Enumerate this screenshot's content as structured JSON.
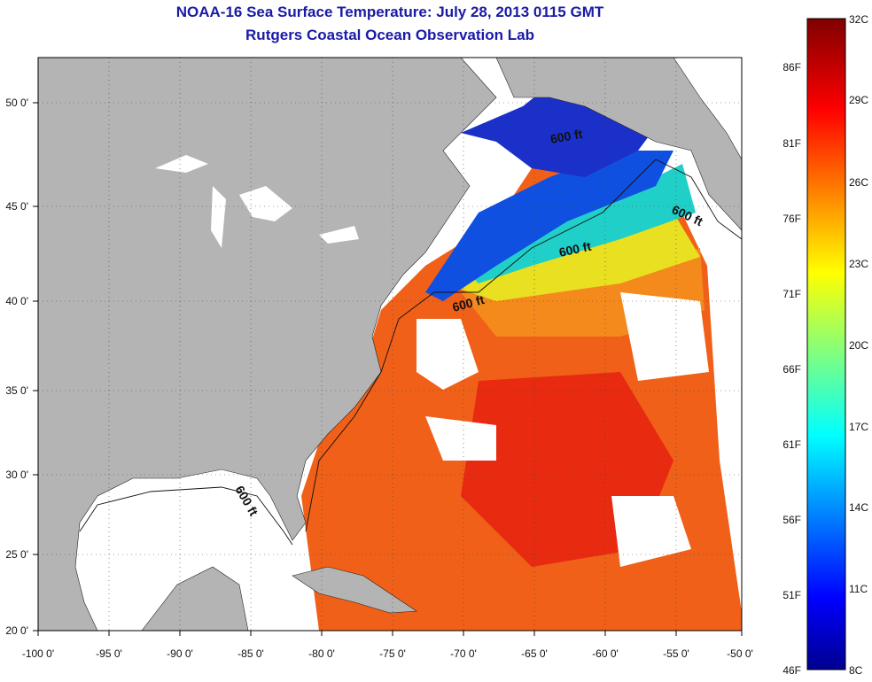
{
  "title": "NOAA-16 Sea Surface Temperature:  July 28, 2013 0115 GMT",
  "subtitle": "Rutgers Coastal Ocean Observation Lab",
  "lat_ticks": [
    "50 0'",
    "45 0'",
    "40 0'",
    "35 0'",
    "30 0'",
    "25 0'",
    "20 0'"
  ],
  "lon_ticks": [
    "-100 0'",
    "-95 0'",
    "-90 0'",
    "-85 0'",
    "-80 0'",
    "-75 0'",
    "-70 0'",
    "-65 0'",
    "-60 0'",
    "-55 0'",
    "-50 0'"
  ],
  "isobath_label": "600 ft",
  "colorbar": {
    "fahrenheit": [
      "86F",
      "81F",
      "76F",
      "71F",
      "66F",
      "61F",
      "56F",
      "51F",
      "46F"
    ],
    "celsius": [
      "32C",
      "29C",
      "26C",
      "23C",
      "20C",
      "17C",
      "14C",
      "11C",
      "8C"
    ]
  },
  "colors": {
    "land": "#b4b4b4",
    "no_data": "#ffffff",
    "title": "#1a1aa6"
  }
}
